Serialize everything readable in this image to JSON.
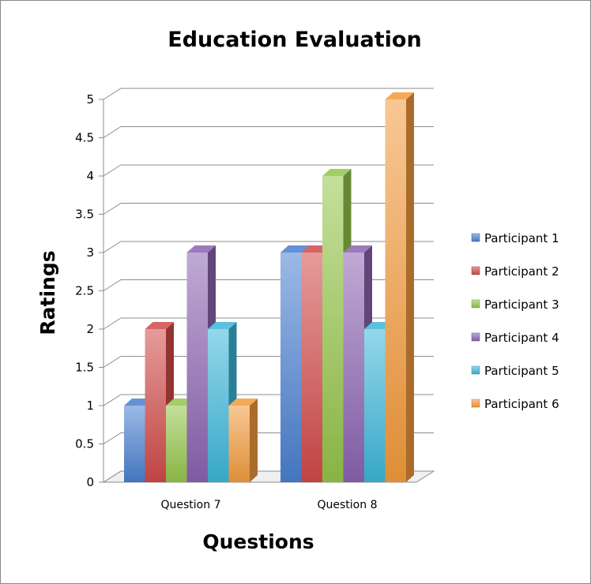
{
  "chart_data": {
    "type": "bar",
    "title": "Education Evaluation",
    "xlabel": "Questions",
    "ylabel": "Ratings",
    "ylim": [
      0,
      5
    ],
    "yticks": [
      "0",
      "0.5",
      "1",
      "1.5",
      "2",
      "2.5",
      "3",
      "3.5",
      "4",
      "4.5",
      "5"
    ],
    "categories": [
      "Question 7",
      "Question 8"
    ],
    "series": [
      {
        "name": "Participant 1",
        "values": [
          1,
          3
        ],
        "color": "#4a7fd0"
      },
      {
        "name": "Participant 2",
        "values": [
          2,
          3
        ],
        "color": "#d04a48"
      },
      {
        "name": "Participant 3",
        "values": [
          1,
          4
        ],
        "color": "#94c44a"
      },
      {
        "name": "Participant 4",
        "values": [
          3,
          3
        ],
        "color": "#8a63b0"
      },
      {
        "name": "Participant 5",
        "values": [
          2,
          2
        ],
        "color": "#3cb6d8"
      },
      {
        "name": "Participant 6",
        "values": [
          1,
          5
        ],
        "color": "#f29a3c"
      }
    ],
    "grid": true,
    "style": "3d-column",
    "legend_position": "right"
  }
}
